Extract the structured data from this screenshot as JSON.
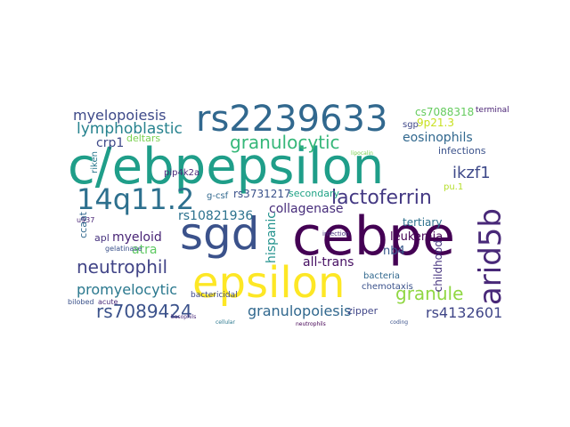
{
  "words": [
    {
      "text": "c/ebpepsilon",
      "color": "#1f9e89"
    },
    {
      "text": "rs2239633",
      "color": "#31688e"
    },
    {
      "text": "cebpe",
      "color": "#440154"
    },
    {
      "text": "sgd",
      "color": "#3b528b"
    },
    {
      "text": "epsilon",
      "color": "#fde725"
    },
    {
      "text": "arid5b",
      "color": "#482878"
    },
    {
      "text": "14q11.2",
      "color": "#2d708e"
    },
    {
      "text": "granulocytic",
      "color": "#35b779"
    },
    {
      "text": "lactoferrin",
      "color": "#443983"
    },
    {
      "text": "myelopoiesis",
      "color": "#3e4a89"
    },
    {
      "text": "lymphoblastic",
      "color": "#26828e"
    },
    {
      "text": "neutrophil",
      "color": "#414487"
    },
    {
      "text": "granule",
      "color": "#90d743"
    },
    {
      "text": "promyelocytic",
      "color": "#2a788e"
    },
    {
      "text": "rs7089424",
      "color": "#3b528b"
    },
    {
      "text": "granulopoiesis",
      "color": "#31688e"
    },
    {
      "text": "rs4132601",
      "color": "#404688"
    },
    {
      "text": "ikzf1",
      "color": "#3e4989"
    },
    {
      "text": "eosinophils",
      "color": "#31688e"
    },
    {
      "text": "collagenase",
      "color": "#472d7b"
    },
    {
      "text": "rs10821936",
      "color": "#2c728e"
    },
    {
      "text": "myeloid",
      "color": "#482475"
    },
    {
      "text": "atra",
      "color": "#5ec962"
    },
    {
      "text": "all-trans",
      "color": "#471063"
    },
    {
      "text": "leukemia",
      "color": "#440154"
    },
    {
      "text": "nb4",
      "color": "#38598c"
    },
    {
      "text": "hispanic",
      "color": "#21918c"
    },
    {
      "text": "crp1",
      "color": "#3e4989"
    },
    {
      "text": "deltars",
      "color": "#7ad151"
    },
    {
      "text": "pip4k2a",
      "color": "#482878"
    },
    {
      "text": "cs7088318",
      "color": "#65cb5e"
    },
    {
      "text": "terminal",
      "color": "#482173"
    },
    {
      "text": "9p21.3",
      "color": "#c8e020"
    },
    {
      "text": "sgp",
      "color": "#3f4788"
    },
    {
      "text": "rs3731217",
      "color": "#3b528b"
    },
    {
      "text": "secondary",
      "color": "#20a386"
    },
    {
      "text": "tertiary",
      "color": "#2d708e"
    },
    {
      "text": "pu.1",
      "color": "#b5de2b"
    },
    {
      "text": "infections",
      "color": "#3b528b"
    },
    {
      "text": "childhood",
      "color": "#46337e"
    },
    {
      "text": "riken",
      "color": "#2a788e"
    },
    {
      "text": "g-csf",
      "color": "#31688e"
    },
    {
      "text": "ccaat",
      "color": "#31688e"
    },
    {
      "text": "apl",
      "color": "#46327e"
    },
    {
      "text": "gelatinase",
      "color": "#3b528b"
    },
    {
      "text": "acute",
      "color": "#482878"
    },
    {
      "text": "u937",
      "color": "#482475"
    },
    {
      "text": "bactericidal",
      "color": "#3e4989"
    },
    {
      "text": "bacteria",
      "color": "#31688e"
    },
    {
      "text": "chemotaxis",
      "color": "#3b528b"
    },
    {
      "text": "zipper",
      "color": "#404688"
    },
    {
      "text": "bilobed",
      "color": "#3b528b"
    },
    {
      "text": "infection",
      "color": "#46327e"
    },
    {
      "text": "basophils",
      "color": "#482878"
    },
    {
      "text": "lipocalin",
      "color": "#7ad151"
    },
    {
      "text": "cellular",
      "color": "#2a788e"
    },
    {
      "text": "coding",
      "color": "#3b528b"
    },
    {
      "text": "neutrophils",
      "color": "#440154"
    }
  ]
}
